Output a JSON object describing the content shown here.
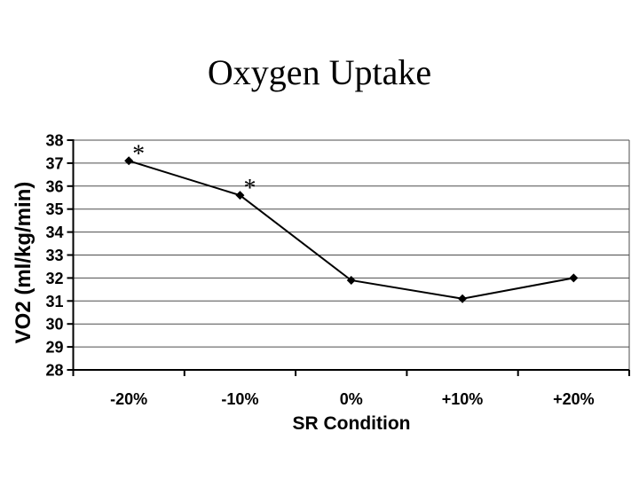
{
  "slide": {
    "background": "#ffffff"
  },
  "chart_data": {
    "type": "line",
    "title": "Oxygen Uptake",
    "xlabel": "SR Condition",
    "ylabel": "VO2 (ml/kg/min)",
    "categories": [
      "-20%",
      "-10%",
      "0%",
      "+10%",
      "+20%"
    ],
    "series": [
      {
        "name": "VO2",
        "values": [
          37.1,
          35.6,
          31.9,
          31.1,
          32.0
        ],
        "marker": "diamond"
      }
    ],
    "annotations": [
      {
        "point_index": 0,
        "text": "*"
      },
      {
        "point_index": 1,
        "text": "*"
      }
    ],
    "ylim": [
      28,
      38
    ],
    "ytick_step": 1,
    "yticks": [
      28,
      29,
      30,
      31,
      32,
      33,
      34,
      35,
      36,
      37,
      38
    ],
    "grid": "horizontal",
    "legend": "none",
    "colors": {
      "line": "#000000",
      "marker": "#000000",
      "grid": "#4d4d4d",
      "axis": "#000000",
      "text": "#000000",
      "background": "#ffffff"
    }
  }
}
